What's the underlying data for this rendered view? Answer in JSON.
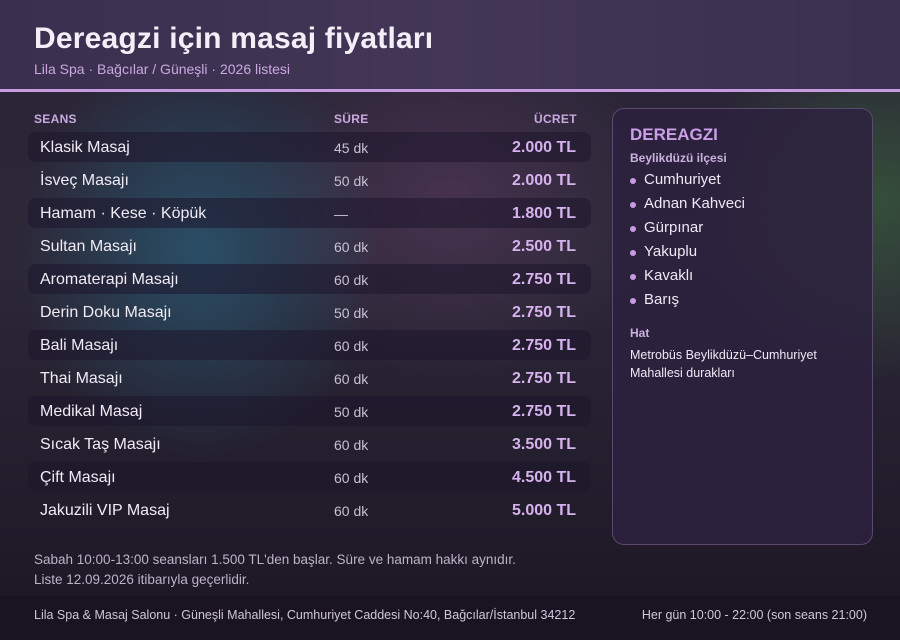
{
  "header": {
    "title": "Dereagzi için masaj fiyatları",
    "subtitle": "Lila Spa · Bağcılar / Güneşli · 2026 listesi"
  },
  "table": {
    "columns": {
      "session": "SEANS",
      "duration": "SÜRE",
      "price": "ÜCRET"
    },
    "rows": [
      {
        "name": "Klasik Masaj",
        "duration": "45 dk",
        "price": "2.000 TL"
      },
      {
        "name": "İsveç Masajı",
        "duration": "50 dk",
        "price": "2.000 TL"
      },
      {
        "name": "Hamam · Kese · Köpük",
        "duration": "—",
        "price": "1.800 TL"
      },
      {
        "name": "Sultan Masajı",
        "duration": "60 dk",
        "price": "2.500 TL"
      },
      {
        "name": "Aromaterapi Masajı",
        "duration": "60 dk",
        "price": "2.750 TL"
      },
      {
        "name": "Derin Doku Masajı",
        "duration": "50 dk",
        "price": "2.750 TL"
      },
      {
        "name": "Bali Masajı",
        "duration": "60 dk",
        "price": "2.750 TL"
      },
      {
        "name": "Thai Masajı",
        "duration": "60 dk",
        "price": "2.750 TL"
      },
      {
        "name": "Medikal Masaj",
        "duration": "50 dk",
        "price": "2.750 TL"
      },
      {
        "name": "Sıcak Taş Masajı",
        "duration": "60 dk",
        "price": "3.500 TL"
      },
      {
        "name": "Çift Masajı",
        "duration": "60 dk",
        "price": "4.500 TL"
      },
      {
        "name": "Jakuzili VIP Masaj",
        "duration": "60 dk",
        "price": "5.000 TL"
      }
    ]
  },
  "sidebar": {
    "title": "DEREAGZI",
    "subtitle": "Beylikdüzü ilçesi",
    "neighborhoods": [
      "Cumhuriyet",
      "Adnan Kahveci",
      "Gürpınar",
      "Yakuplu",
      "Kavaklı",
      "Barış"
    ],
    "line_heading": "Hat",
    "line_text": "Metrobüs Beylikdüzü–Cumhuriyet Mahallesi durakları"
  },
  "notes": {
    "line1": "Sabah 10:00-13:00 seansları 1.500 TL'den başlar. Süre ve hamam hakkı aynıdır.",
    "line2": "Liste 12.09.2026 itibarıyla geçerlidir."
  },
  "footer": {
    "address": "Lila Spa & Masaj Salonu · Güneşli Mahallesi, Cumhuriyet Caddesi No:40, Bağcılar/İstanbul 34212",
    "hours": "Her gün 10:00 - 22:00 (son seans 21:00)"
  },
  "colors": {
    "accent": "#c79be0",
    "price": "#d6b2ee"
  }
}
